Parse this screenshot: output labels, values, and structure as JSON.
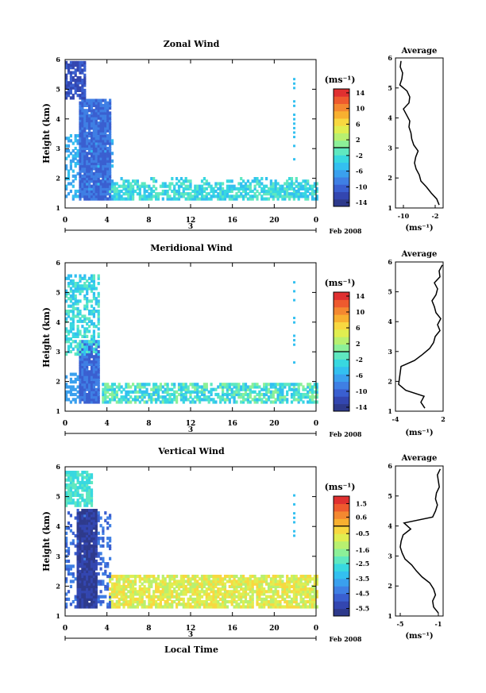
{
  "date_label": "Feb 2008",
  "day_label": "3",
  "xlabel_bottom": "Local Time",
  "x_ticks": [
    "0",
    "4",
    "8",
    "12",
    "16",
    "20",
    "0"
  ],
  "colorbar_unit": "(ms⁻¹)",
  "avg_unit": "(ms⁻¹)",
  "avg_title": "Average",
  "colors": {
    "palette": [
      "#2e3a8c",
      "#3346b0",
      "#3a5fd0",
      "#3f7fe4",
      "#3aa0ee",
      "#33c0f0",
      "#38d8e0",
      "#5fe8c0",
      "#8cf098",
      "#b8f070",
      "#e0ee50",
      "#f8d840",
      "#f8b030",
      "#f48830",
      "#ee5a2e",
      "#e03030"
    ]
  },
  "chart_data": [
    {
      "type": "heatmap",
      "title": "Zonal Wind",
      "ylabel": "Height (km)",
      "xlim": [
        0,
        24
      ],
      "ylim": [
        1,
        6
      ],
      "y_ticks": [
        "1",
        "2",
        "3",
        "4",
        "5",
        "6"
      ],
      "colorbar": {
        "min": -15,
        "max": 15,
        "ticks": [
          "14",
          "10",
          "6",
          "2",
          "-2",
          "-6",
          "-10",
          "-14"
        ]
      },
      "profile": {
        "title": "Average",
        "xlim": [
          -12,
          0
        ],
        "x_ticks": [
          "-10",
          "-2"
        ],
        "height": [
          1.1,
          1.3,
          1.5,
          1.7,
          1.9,
          2.1,
          2.3,
          2.5,
          2.7,
          2.9,
          3.1,
          3.3,
          3.5,
          3.7,
          3.9,
          4.1,
          4.3,
          4.5,
          4.7,
          4.9,
          5.1,
          5.3,
          5.5,
          5.7,
          5.9
        ],
        "value": [
          -1.0,
          -1.6,
          -3.0,
          -4.2,
          -5.6,
          -6.0,
          -6.8,
          -7.2,
          -6.9,
          -6.3,
          -7.4,
          -7.9,
          -8.1,
          -8.6,
          -8.4,
          -9.2,
          -10.0,
          -8.6,
          -8.4,
          -9.1,
          -10.9,
          -10.4,
          -10.2,
          -10.8,
          -10.6
        ]
      }
    },
    {
      "type": "heatmap",
      "title": "Meridional Wind",
      "ylabel": "Height (km)",
      "xlim": [
        0,
        24
      ],
      "ylim": [
        1,
        6
      ],
      "y_ticks": [
        "1",
        "2",
        "3",
        "4",
        "5",
        "6"
      ],
      "colorbar": {
        "min": -15,
        "max": 15,
        "ticks": [
          "14",
          "10",
          "6",
          "2",
          "-2",
          "-6",
          "-10",
          "-14"
        ]
      },
      "profile": {
        "title": "Average",
        "xlim": [
          -4,
          2
        ],
        "x_ticks": [
          "-4",
          "2"
        ],
        "height": [
          1.1,
          1.3,
          1.5,
          1.7,
          1.9,
          2.1,
          2.3,
          2.5,
          2.7,
          2.9,
          3.1,
          3.3,
          3.5,
          3.7,
          3.9,
          4.1,
          4.3,
          4.5,
          4.7,
          4.9,
          5.1,
          5.3,
          5.5,
          5.7,
          5.9
        ],
        "value": [
          -0.3,
          -0.8,
          -0.4,
          -2.7,
          -3.6,
          -3.5,
          -3.4,
          -3.3,
          -1.6,
          -0.6,
          0.3,
          0.8,
          1.0,
          1.6,
          1.3,
          1.7,
          1.1,
          0.9,
          0.6,
          1.1,
          1.3,
          0.9,
          1.6,
          1.5,
          1.9
        ]
      }
    },
    {
      "type": "heatmap",
      "title": "Vertical Wind",
      "ylabel": "Height (km)",
      "xlim": [
        0,
        24
      ],
      "ylim": [
        1,
        6
      ],
      "y_ticks": [
        "1",
        "2",
        "3",
        "4",
        "5",
        "6"
      ],
      "colorbar": {
        "min": -6,
        "max": 2,
        "ticks": [
          "1.5",
          "0.6",
          "-0.5",
          "-1.6",
          "-2.5",
          "-3.5",
          "-4.5",
          "-5.5"
        ]
      },
      "profile": {
        "title": "Average",
        "xlim": [
          -5.5,
          -0.5
        ],
        "x_ticks": [
          "-5",
          "-1"
        ],
        "height": [
          1.1,
          1.3,
          1.5,
          1.7,
          1.9,
          2.1,
          2.3,
          2.5,
          2.7,
          2.9,
          3.1,
          3.3,
          3.5,
          3.7,
          3.9,
          4.1,
          4.3,
          4.5,
          4.7,
          4.9,
          5.1,
          5.3,
          5.5,
          5.7,
          5.9
        ],
        "value": [
          -1.0,
          -1.5,
          -1.6,
          -1.3,
          -1.5,
          -1.9,
          -2.7,
          -3.3,
          -3.8,
          -4.5,
          -4.8,
          -5.0,
          -4.9,
          -4.7,
          -3.9,
          -4.6,
          -1.6,
          -1.3,
          -1.1,
          -1.3,
          -1.2,
          -0.9,
          -1.0,
          -1.1,
          -0.8
        ]
      }
    }
  ]
}
